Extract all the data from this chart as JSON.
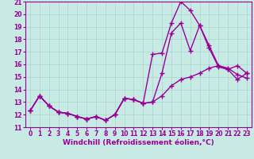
{
  "background_color": "#c8eae4",
  "grid_color": "#aad4cc",
  "line_color": "#990099",
  "line1_x": [
    0,
    1,
    2,
    3,
    4,
    5,
    6,
    7,
    8,
    9,
    10,
    11,
    12,
    13,
    14,
    15,
    16,
    17,
    18,
    19,
    20,
    21,
    22,
    23
  ],
  "line1_y": [
    12.3,
    13.5,
    12.7,
    12.2,
    12.1,
    11.85,
    11.65,
    11.85,
    11.55,
    12.0,
    13.3,
    13.2,
    12.9,
    13.0,
    13.5,
    14.3,
    14.8,
    15.0,
    15.3,
    15.7,
    15.9,
    15.7,
    15.2,
    14.9
  ],
  "line2_x": [
    0,
    1,
    2,
    3,
    4,
    5,
    6,
    7,
    8,
    9,
    10,
    11,
    12,
    13,
    14,
    15,
    16,
    17,
    18,
    19,
    20,
    21,
    22,
    23
  ],
  "line2_y": [
    12.3,
    13.5,
    12.7,
    12.2,
    12.1,
    11.85,
    11.65,
    11.85,
    11.55,
    12.0,
    13.3,
    13.2,
    12.9,
    13.0,
    15.3,
    18.5,
    19.3,
    17.1,
    19.1,
    17.5,
    15.9,
    15.6,
    15.9,
    15.3
  ],
  "line3_x": [
    0,
    1,
    2,
    3,
    4,
    5,
    6,
    7,
    8,
    9,
    10,
    11,
    12,
    13,
    14,
    15,
    16,
    17,
    18,
    19,
    20,
    21,
    22,
    23
  ],
  "line3_y": [
    12.3,
    13.5,
    12.7,
    12.2,
    12.1,
    11.85,
    11.65,
    11.85,
    11.55,
    12.0,
    13.3,
    13.2,
    12.9,
    16.8,
    16.9,
    19.3,
    21.0,
    20.3,
    19.1,
    17.3,
    15.8,
    15.6,
    14.8,
    15.3
  ],
  "xlim": [
    -0.5,
    23.5
  ],
  "ylim": [
    11,
    21
  ],
  "yticks": [
    11,
    12,
    13,
    14,
    15,
    16,
    17,
    18,
    19,
    20,
    21
  ],
  "xticks": [
    0,
    1,
    2,
    3,
    4,
    5,
    6,
    7,
    8,
    9,
    10,
    11,
    12,
    13,
    14,
    15,
    16,
    17,
    18,
    19,
    20,
    21,
    22,
    23
  ],
  "xlabel": "Windchill (Refroidissement éolien,°C)",
  "marker": "+",
  "marker_size": 4,
  "line_width": 1.0,
  "tick_fontsize": 5.5,
  "xlabel_fontsize": 6.5
}
